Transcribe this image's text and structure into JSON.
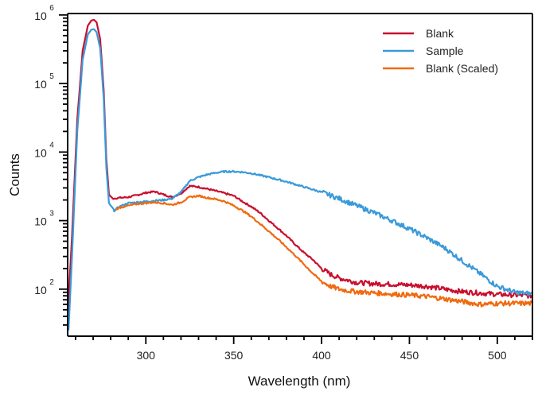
{
  "chart_data": {
    "type": "line",
    "title": "",
    "xlabel": "Wavelength (nm)",
    "ylabel": "Counts",
    "xlim": [
      255.5,
      520
    ],
    "ylim": [
      20.6,
      1050000
    ],
    "yscale": "log",
    "grid": false,
    "legend_position": "top-right",
    "x_ticks": [
      300,
      350,
      400,
      450,
      500
    ],
    "x_tick_labels": [
      "300",
      "350",
      "400",
      "450",
      "500"
    ],
    "y_ticks": [
      100,
      1000,
      10000,
      100000,
      1000000
    ],
    "y_tick_labels": [
      {
        "base": "10",
        "exp": "2"
      },
      {
        "base": "10",
        "exp": "3"
      },
      {
        "base": "10",
        "exp": "4"
      },
      {
        "base": "10",
        "exp": "5"
      },
      {
        "base": "10",
        "exp": "6"
      }
    ],
    "series": [
      {
        "name": "Blank",
        "color": "#c8102e",
        "x": [
          255.5,
          258,
          261,
          264,
          267,
          269,
          270.5,
          272,
          274,
          276,
          277.5,
          279,
          281,
          285,
          290,
          295,
          300,
          305,
          310,
          315,
          320,
          325,
          330,
          335,
          340,
          345,
          350,
          355,
          360,
          365,
          370,
          375,
          380,
          385,
          390,
          395,
          400,
          405,
          410,
          415,
          420,
          430,
          440,
          450,
          460,
          470,
          480,
          490,
          500,
          510,
          520
        ],
        "y": [
          40,
          600,
          30000,
          300000,
          700000,
          830000,
          850000,
          780000,
          450000,
          80000,
          8000,
          2400,
          2100,
          2150,
          2200,
          2350,
          2550,
          2650,
          2400,
          2200,
          2500,
          3200,
          3100,
          2900,
          2700,
          2500,
          2300,
          1900,
          1600,
          1300,
          1000,
          780,
          600,
          450,
          340,
          270,
          200,
          165,
          145,
          135,
          125,
          120,
          118,
          115,
          110,
          100,
          92,
          88,
          84,
          82,
          80
        ]
      },
      {
        "name": "Sample",
        "color": "#3a9ad9",
        "x": [
          256,
          258,
          261,
          264,
          267,
          269,
          270.5,
          272,
          274,
          276,
          277.5,
          279,
          282,
          285,
          290,
          295,
          300,
          305,
          310,
          315,
          320,
          325,
          330,
          335,
          340,
          345,
          350,
          355,
          360,
          370,
          380,
          390,
          400,
          410,
          420,
          430,
          440,
          450,
          460,
          470,
          480,
          490,
          500,
          510,
          520
        ],
        "y": [
          25,
          300,
          20000,
          220000,
          520000,
          610000,
          620000,
          560000,
          330000,
          60000,
          6000,
          1800,
          1400,
          1600,
          1800,
          1850,
          1900,
          1950,
          2000,
          2100,
          2600,
          3800,
          4300,
          4700,
          5000,
          5200,
          5200,
          5100,
          4900,
          4300,
          3700,
          3100,
          2600,
          2100,
          1650,
          1300,
          1000,
          760,
          560,
          400,
          260,
          170,
          110,
          90,
          85
        ]
      },
      {
        "name": "Blank (Scaled)",
        "color": "#f06a0f",
        "x": [
          283,
          285,
          290,
          295,
          300,
          305,
          310,
          315,
          320,
          325,
          330,
          335,
          340,
          345,
          350,
          355,
          360,
          365,
          370,
          375,
          380,
          385,
          390,
          395,
          400,
          405,
          410,
          415,
          420,
          430,
          440,
          450,
          460,
          470,
          480,
          490,
          500,
          510,
          520
        ],
        "y": [
          1450,
          1550,
          1650,
          1750,
          1800,
          1850,
          1800,
          1700,
          1850,
          2200,
          2300,
          2150,
          2050,
          1900,
          1650,
          1400,
          1150,
          900,
          700,
          540,
          410,
          310,
          230,
          170,
          130,
          110,
          100,
          95,
          92,
          88,
          85,
          82,
          78,
          72,
          66,
          60,
          62,
          62,
          62
        ]
      }
    ]
  }
}
